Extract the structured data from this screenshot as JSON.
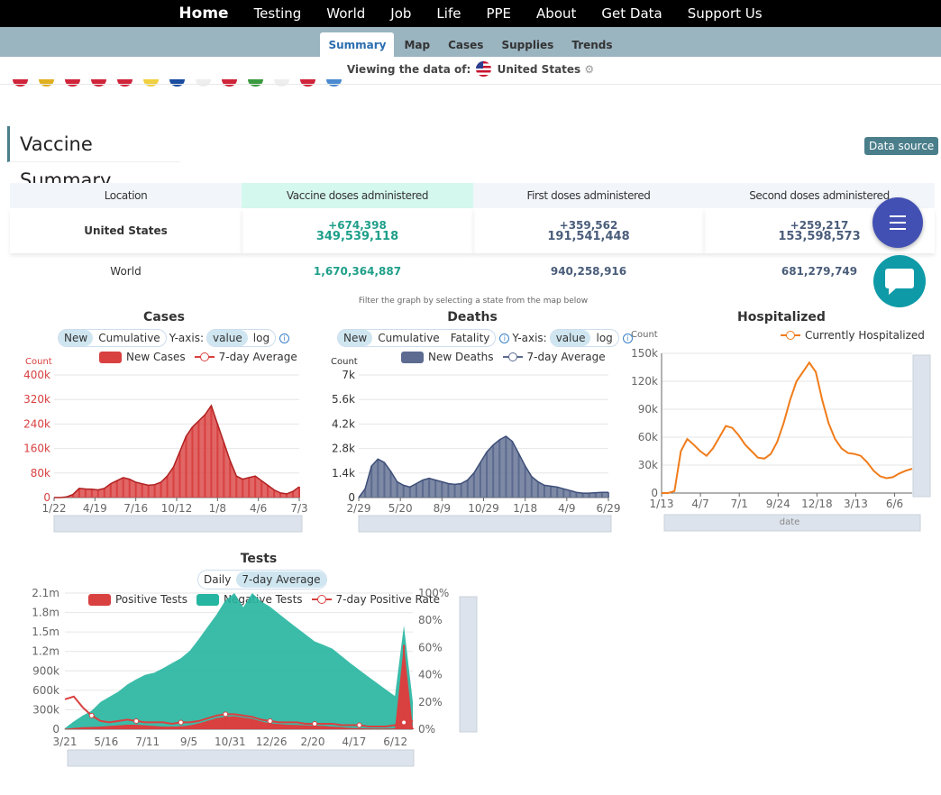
{
  "nav": {
    "items": [
      "Home",
      "Testing",
      "World",
      "Job",
      "Life",
      "PPE",
      "About",
      "Get Data",
      "Support Us"
    ]
  },
  "subnav": {
    "tabs": [
      "Summary",
      "Map",
      "Cases",
      "Supplies",
      "Trends"
    ],
    "active": "Summary"
  },
  "viewing": {
    "label": "Viewing the data of:",
    "country": "United States"
  },
  "vaccine": {
    "title": "Vaccine Summary",
    "data_source": "Data source",
    "headers": [
      "Location",
      "Vaccine doses administered",
      "First doses administered",
      "Second doses administered"
    ],
    "rows": [
      {
        "location": "United States",
        "doses_delta": "+674,398",
        "doses": "349,539,118",
        "first_delta": "+359,562",
        "first": "191,541,448",
        "second_delta": "+259,217",
        "second": "153,598,573"
      },
      {
        "location": "World",
        "doses": "1,670,364,887",
        "first": "940,258,916",
        "second": "681,279,749"
      }
    ]
  },
  "filter_note": "Filter the graph by selecting a state from the map below",
  "charts": {
    "cases": {
      "title": "Cases",
      "toggle": [
        "New",
        "Cumulative"
      ],
      "yaxis_label": "Y-axis:",
      "yaxis": [
        "value",
        "log"
      ],
      "legend": [
        "New Cases",
        "7-day Average"
      ],
      "count": "Count",
      "color": "#d94040"
    },
    "deaths": {
      "title": "Deaths",
      "toggle": [
        "New",
        "Cumulative",
        "Fatality"
      ],
      "yaxis_label": "Y-axis:",
      "yaxis": [
        "value",
        "log"
      ],
      "legend": [
        "New Deaths",
        "7-day Average"
      ],
      "count": "Count",
      "color": "#5c6b8f"
    },
    "hosp": {
      "title": "Hospitalized",
      "legend": [
        "Currently Hospitalized"
      ],
      "count": "Count",
      "xname": "date",
      "color": "#f07c1a"
    },
    "tests": {
      "title": "Tests",
      "toggle": [
        "Daily",
        "7-day Average"
      ],
      "legend": [
        "Positive Tests",
        "Negative Tests",
        "7-day Positive Rate"
      ],
      "colors": [
        "#d94040",
        "#25b5a0"
      ]
    }
  },
  "chart_data": [
    {
      "type": "area",
      "title": "Cases",
      "ylabel": "Count",
      "yticks": [
        "0",
        "80k",
        "160k",
        "240k",
        "320k",
        "400k"
      ],
      "ylim": [
        0,
        400000
      ],
      "xticks": [
        "1/22",
        "4/19",
        "7/16",
        "10/12",
        "1/8",
        "4/6",
        "7/3"
      ],
      "series": [
        {
          "name": "New Cases",
          "values": [
            0,
            0,
            2000,
            10000,
            30000,
            28000,
            27000,
            25000,
            30000,
            45000,
            55000,
            65000,
            60000,
            50000,
            45000,
            40000,
            42000,
            50000,
            70000,
            100000,
            150000,
            200000,
            230000,
            250000,
            270000,
            300000,
            240000,
            180000,
            120000,
            70000,
            60000,
            65000,
            70000,
            55000,
            40000,
            25000,
            15000,
            12000,
            20000,
            35000
          ]
        }
      ]
    },
    {
      "type": "area",
      "title": "Deaths",
      "ylabel": "Count",
      "yticks": [
        "0",
        "1.4k",
        "2.8k",
        "4.2k",
        "5.6k",
        "7k"
      ],
      "ylim": [
        0,
        7000
      ],
      "xticks": [
        "2/29",
        "5/20",
        "8/9",
        "10/29",
        "1/18",
        "4/9",
        "6/29"
      ],
      "series": [
        {
          "name": "New Deaths",
          "values": [
            0,
            500,
            1800,
            2200,
            2000,
            1500,
            900,
            700,
            600,
            800,
            1000,
            1100,
            1000,
            900,
            800,
            750,
            800,
            1000,
            1400,
            2000,
            2600,
            3000,
            3300,
            3500,
            3200,
            2500,
            1800,
            1200,
            900,
            700,
            650,
            600,
            500,
            400,
            300,
            250,
            250,
            280,
            300,
            300
          ]
        }
      ]
    },
    {
      "type": "line",
      "title": "Hospitalized",
      "ylabel": "Count",
      "xlabel": "date",
      "yticks": [
        "0",
        "30k",
        "60k",
        "90k",
        "120k",
        "150k"
      ],
      "ylim": [
        0,
        150000
      ],
      "xticks": [
        "1/13",
        "4/7",
        "7/1",
        "9/24",
        "12/18",
        "3/13",
        "6/6"
      ],
      "series": [
        {
          "name": "Currently Hospitalized",
          "values": [
            0,
            0,
            2000,
            45000,
            58000,
            52000,
            45000,
            40000,
            48000,
            60000,
            72000,
            70000,
            62000,
            52000,
            45000,
            38000,
            37000,
            42000,
            55000,
            75000,
            100000,
            120000,
            130000,
            140000,
            130000,
            100000,
            75000,
            58000,
            48000,
            43000,
            42000,
            40000,
            33000,
            24000,
            18000,
            16000,
            17000,
            21000,
            24000,
            26000
          ]
        }
      ]
    },
    {
      "type": "area",
      "title": "Tests",
      "yticks": [
        "0",
        "300k",
        "600k",
        "900k",
        "1.2m",
        "1.5m",
        "1.8m",
        "2.1m"
      ],
      "ylim": [
        0,
        2100000
      ],
      "y2ticks": [
        "0%",
        "20%",
        "40%",
        "60%",
        "80%",
        "100%"
      ],
      "xticks": [
        "3/21",
        "5/16",
        "7/11",
        "9/5",
        "10/31",
        "12/26",
        "2/20",
        "4/17",
        "6/12"
      ],
      "series": [
        {
          "name": "Negative Tests",
          "values": [
            10000,
            100000,
            180000,
            250000,
            380000,
            450000,
            520000,
            620000,
            700000,
            780000,
            820000,
            900000,
            980000,
            1050000,
            1150000,
            1300000,
            1450000,
            1600000,
            1800000,
            1900000,
            1700000,
            1950000,
            1850000,
            1800000,
            1700000,
            1600000,
            1500000,
            1400000,
            1300000,
            1250000,
            1200000,
            1100000,
            1000000,
            900000,
            800000,
            700000,
            600000,
            500000,
            300000,
            400000
          ]
        },
        {
          "name": "Positive Tests",
          "values": [
            5000,
            20000,
            30000,
            35000,
            40000,
            50000,
            60000,
            70000,
            70000,
            60000,
            50000,
            40000,
            40000,
            45000,
            60000,
            90000,
            130000,
            170000,
            190000,
            200000,
            180000,
            160000,
            120000,
            90000,
            80000,
            70000,
            65000,
            60000,
            55000,
            50000,
            40000,
            30000,
            20000,
            15000,
            12000,
            10000,
            10000,
            12000,
            1300000,
            20000
          ]
        },
        {
          "name": "7-day Positive Rate",
          "values": [
            22,
            24,
            16,
            10,
            6,
            5,
            6,
            7,
            6,
            5,
            5,
            5,
            4,
            5,
            5,
            6,
            8,
            10,
            11,
            11,
            10,
            9,
            7,
            6,
            5,
            5,
            5,
            4,
            4,
            4,
            4,
            3,
            3,
            3,
            2,
            2,
            2,
            3,
            5,
            6
          ]
        }
      ]
    }
  ]
}
